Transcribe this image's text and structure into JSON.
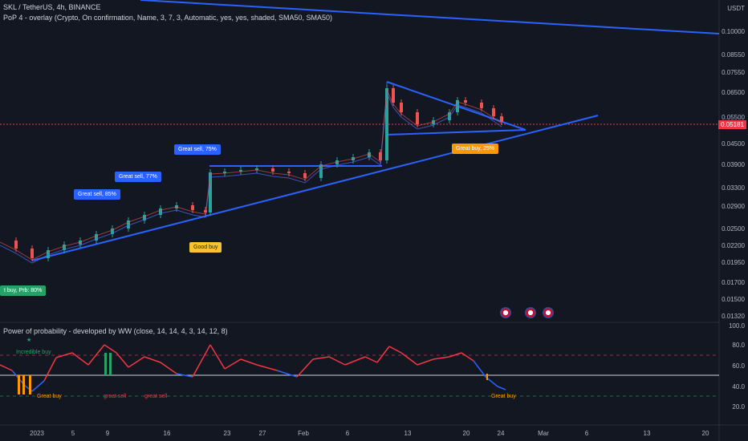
{
  "header": {
    "symbol_line": "SKL / TetherUS, 4h, BINANCE",
    "indicator_line": "PoP 4 - overlay (Crypto, On confirmation, Name, 3, 7, 3, Automatic, yes, yes, shaded, SMA50, SMA50)"
  },
  "price_axis": {
    "currency": "USDT",
    "ticks": [
      "0.10000",
      "0.08550",
      "0.07550",
      "0.06500",
      "0.05500",
      "0.04500",
      "0.03900",
      "0.03300",
      "0.02900",
      "0.02500",
      "0.02200",
      "0.01950",
      "0.01700",
      "0.01500",
      "0.01320"
    ],
    "current_price": "0.05181"
  },
  "oscillator": {
    "title": "Power of probability - developed by WW (close, 14, 14, 4, 3, 14, 12, 8)",
    "ticks": [
      "100.0",
      "80.0",
      "60.0",
      "40.0",
      "20.0"
    ],
    "incredible_buy": "Incredible buy",
    "great_buy_1": "Great buy",
    "great_sell_1": "great sell",
    "great_sell_2": "great sell",
    "great_buy_2": "Great buy"
  },
  "time_axis": [
    "2023",
    "5",
    "9",
    "16",
    "23",
    "27",
    "Feb",
    "6",
    "13",
    "20",
    "24",
    "Mar",
    "6",
    "13",
    "20"
  ],
  "signals": {
    "buy_left": "t buy, Prb: 80%",
    "sell_1": "Great sell, 85%",
    "sell_2": "Great sell, 77%",
    "sell_3": "Great sell, 75%",
    "good_buy": "Good buy",
    "great_buy_orange": "Great buy, 25%"
  },
  "colors": {
    "background": "#131722",
    "trendline": "#2962ff",
    "up_candle": "#26a69a",
    "down_candle": "#ef5350",
    "price_line": "#f23645",
    "osc_high": "#f23645",
    "osc_low": "#2962ff"
  }
}
